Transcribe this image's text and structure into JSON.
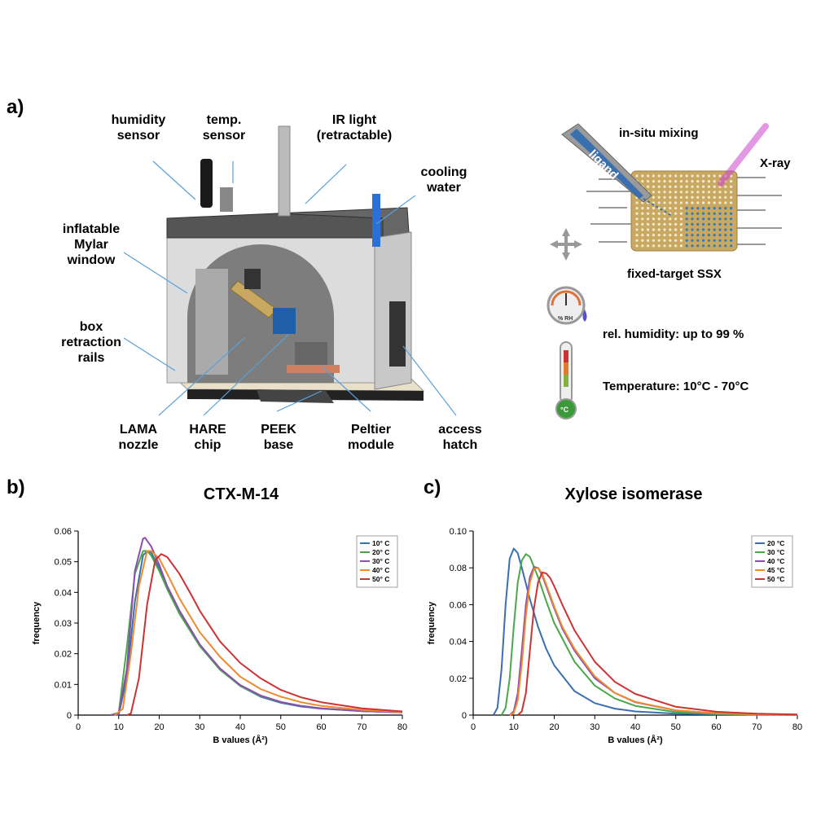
{
  "panels": {
    "a": "a)",
    "b": "b)",
    "c": "c)"
  },
  "device_labels": {
    "humidity_sensor": [
      "humidity",
      "sensor"
    ],
    "temp_sensor": [
      "temp.",
      "sensor"
    ],
    "ir_light": [
      "IR light",
      "(retractable)"
    ],
    "cooling_water": [
      "cooling",
      "water"
    ],
    "mylar_window": [
      "inflatable",
      "Mylar",
      "window"
    ],
    "retraction_rails": [
      "box",
      "retraction",
      "rails"
    ],
    "lama_nozzle": [
      "LAMA",
      "nozzle"
    ],
    "hare_chip": [
      "HARE",
      "chip"
    ],
    "peek_base": [
      "PEEK",
      "base"
    ],
    "peltier_module": [
      "Peltier",
      "module"
    ],
    "access_hatch": [
      "access",
      "hatch"
    ]
  },
  "schematic": {
    "in_situ_mixing": "in-situ mixing",
    "ligand": "ligand",
    "xray": "X-ray",
    "fixed_target": "fixed-target SSX",
    "humidity_text": "rel. humidity:  up to 99 %",
    "temperature_text": "Temperature: 10°C - 70°C",
    "hygrometer_unit": "% RH",
    "thermometer_unit": "°C",
    "colors": {
      "chip": "#c9a961",
      "beam": "#cc44cc",
      "ligand": "#3a6fb0"
    }
  },
  "chart_data": [
    {
      "type": "line",
      "title": "CTX-M-14",
      "xlabel": "B values (Å²)",
      "ylabel": "frequency",
      "xlim": [
        0,
        80
      ],
      "ylim": [
        0,
        0.06
      ],
      "xticks": [
        0,
        10,
        20,
        30,
        40,
        50,
        60,
        70,
        80
      ],
      "yticks": [
        0,
        0.01,
        0.02,
        0.03,
        0.04,
        0.05,
        0.06
      ],
      "ytick_labels": [
        "0",
        "0.01",
        "0.02",
        "0.03",
        "0.04",
        "0.05",
        "0.06"
      ],
      "legend_position": "top-right",
      "series": [
        {
          "name": "10° C",
          "color": "#3a6fb0",
          "x": [
            8,
            10,
            12,
            14,
            16,
            17,
            18,
            20,
            22,
            25,
            30,
            35,
            40,
            45,
            50,
            55,
            60,
            70,
            80
          ],
          "y": [
            0,
            0.0002,
            0.012,
            0.037,
            0.052,
            0.0535,
            0.053,
            0.048,
            0.042,
            0.034,
            0.023,
            0.015,
            0.0095,
            0.006,
            0.004,
            0.0028,
            0.0021,
            0.0013,
            0.0009
          ]
        },
        {
          "name": "20° C",
          "color": "#4aa84a",
          "x": [
            8,
            10,
            12,
            14,
            16,
            17,
            18,
            20,
            22,
            25,
            30,
            35,
            40,
            45,
            50,
            55,
            60,
            70,
            80
          ],
          "y": [
            0,
            0.0008,
            0.022,
            0.046,
            0.0535,
            0.0535,
            0.052,
            0.047,
            0.041,
            0.033,
            0.0225,
            0.0148,
            0.0095,
            0.0062,
            0.0042,
            0.003,
            0.0022,
            0.0013,
            0.0009
          ]
        },
        {
          "name": "30° C",
          "color": "#8b4fb0",
          "x": [
            8,
            10,
            12,
            14,
            16,
            16.5,
            18,
            20,
            22,
            25,
            30,
            35,
            40,
            45,
            50,
            55,
            60,
            70,
            80
          ],
          "y": [
            0,
            0.0003,
            0.015,
            0.047,
            0.0575,
            0.0578,
            0.055,
            0.049,
            0.042,
            0.034,
            0.023,
            0.0152,
            0.0098,
            0.0064,
            0.0043,
            0.003,
            0.0022,
            0.0013,
            0.0009
          ]
        },
        {
          "name": "40° C",
          "color": "#ef8a2e",
          "x": [
            9,
            11,
            13,
            15,
            17,
            18,
            20,
            22,
            25,
            30,
            35,
            40,
            45,
            50,
            55,
            60,
            70,
            80
          ],
          "y": [
            0,
            0.002,
            0.02,
            0.042,
            0.0535,
            0.0535,
            0.051,
            0.046,
            0.038,
            0.027,
            0.019,
            0.0125,
            0.0085,
            0.006,
            0.0042,
            0.003,
            0.0017,
            0.001
          ]
        },
        {
          "name": "50° C",
          "color": "#cc3333",
          "x": [
            12,
            13,
            15,
            17,
            19,
            20.5,
            22,
            25,
            28,
            30,
            35,
            40,
            45,
            50,
            55,
            60,
            70,
            80
          ],
          "y": [
            0,
            0.0005,
            0.012,
            0.036,
            0.0505,
            0.0525,
            0.0515,
            0.046,
            0.039,
            0.034,
            0.024,
            0.017,
            0.012,
            0.0082,
            0.0058,
            0.0042,
            0.0022,
            0.0012
          ]
        }
      ]
    },
    {
      "type": "line",
      "title": "Xylose isomerase",
      "xlabel": "B values (Å²)",
      "ylabel": "frequency",
      "xlim": [
        0,
        80
      ],
      "ylim": [
        0,
        0.1
      ],
      "xticks": [
        0,
        10,
        20,
        30,
        40,
        50,
        60,
        70,
        80
      ],
      "yticks": [
        0,
        0.02,
        0.04,
        0.06,
        0.08,
        0.1
      ],
      "ytick_labels": [
        "0",
        "0.02",
        "0.04",
        "0.06",
        "0.08",
        "0.10"
      ],
      "legend_position": "top-right",
      "series": [
        {
          "name": "20 °C",
          "color": "#3a6fb0",
          "x": [
            5,
            6,
            7,
            8,
            9,
            10,
            11,
            12,
            14,
            16,
            18,
            20,
            25,
            30,
            35,
            40,
            50,
            60,
            70,
            80
          ],
          "y": [
            0,
            0.004,
            0.025,
            0.06,
            0.085,
            0.0905,
            0.088,
            0.08,
            0.063,
            0.048,
            0.036,
            0.027,
            0.013,
            0.0065,
            0.0035,
            0.002,
            0.0008,
            0.0004,
            0.0002,
            0.0001
          ]
        },
        {
          "name": "30 °C",
          "color": "#4aa84a",
          "x": [
            7,
            8,
            9,
            10,
            11,
            12,
            13,
            14,
            16,
            18,
            20,
            25,
            30,
            35,
            40,
            50,
            60,
            70,
            80
          ],
          "y": [
            0,
            0.004,
            0.02,
            0.048,
            0.072,
            0.084,
            0.0875,
            0.086,
            0.075,
            0.062,
            0.05,
            0.029,
            0.016,
            0.009,
            0.005,
            0.0016,
            0.0006,
            0.0003,
            0.0001
          ]
        },
        {
          "name": "40 °C",
          "color": "#8b4fb0",
          "x": [
            9,
            10,
            11,
            12,
            13,
            14,
            15,
            16,
            17,
            18,
            20,
            22,
            25,
            30,
            35,
            40,
            50,
            60,
            70,
            80
          ],
          "y": [
            0,
            0.002,
            0.012,
            0.035,
            0.06,
            0.075,
            0.0805,
            0.08,
            0.076,
            0.07,
            0.058,
            0.047,
            0.035,
            0.02,
            0.012,
            0.007,
            0.0025,
            0.001,
            0.0004,
            0.0002
          ]
        },
        {
          "name": "45 °C",
          "color": "#ef8a2e",
          "x": [
            9,
            10,
            11,
            12,
            13,
            14,
            15,
            16,
            17,
            18,
            20,
            22,
            25,
            30,
            35,
            40,
            50,
            60,
            70,
            80
          ],
          "y": [
            0,
            0.001,
            0.008,
            0.028,
            0.054,
            0.072,
            0.0795,
            0.08,
            0.077,
            0.071,
            0.059,
            0.048,
            0.036,
            0.021,
            0.012,
            0.0072,
            0.0026,
            0.001,
            0.0004,
            0.0002
          ]
        },
        {
          "name": "50 °C",
          "color": "#cc3333",
          "x": [
            11,
            12,
            13,
            14,
            15,
            16,
            17,
            18,
            19,
            20,
            22,
            25,
            30,
            35,
            40,
            50,
            60,
            70,
            80
          ],
          "y": [
            0,
            0.002,
            0.012,
            0.035,
            0.058,
            0.072,
            0.0775,
            0.077,
            0.0745,
            0.07,
            0.06,
            0.046,
            0.029,
            0.018,
            0.0115,
            0.0045,
            0.0018,
            0.0008,
            0.0003
          ]
        }
      ]
    }
  ]
}
